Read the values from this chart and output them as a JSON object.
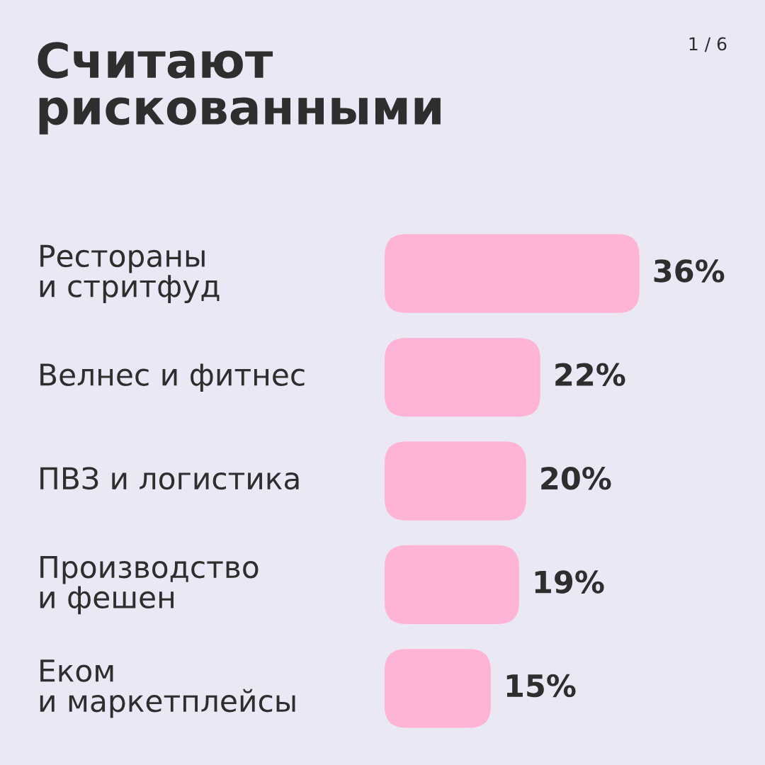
{
  "chart_data": {
    "type": "bar",
    "orientation": "horizontal",
    "title": "Считают\nрискованными",
    "categories": [
      "Рестораны\nи стритфуд",
      "Велнес и фитнес",
      "ПВЗ и логистика",
      "Производство\nи фешен",
      "Еком\nи маркетплейсы"
    ],
    "values": [
      36,
      22,
      20,
      19,
      15
    ],
    "value_labels": [
      "36%",
      "22%",
      "20%",
      "19%",
      "15%"
    ],
    "color": "#ffb3d5",
    "annotations": [
      "1 / 6"
    ]
  }
}
